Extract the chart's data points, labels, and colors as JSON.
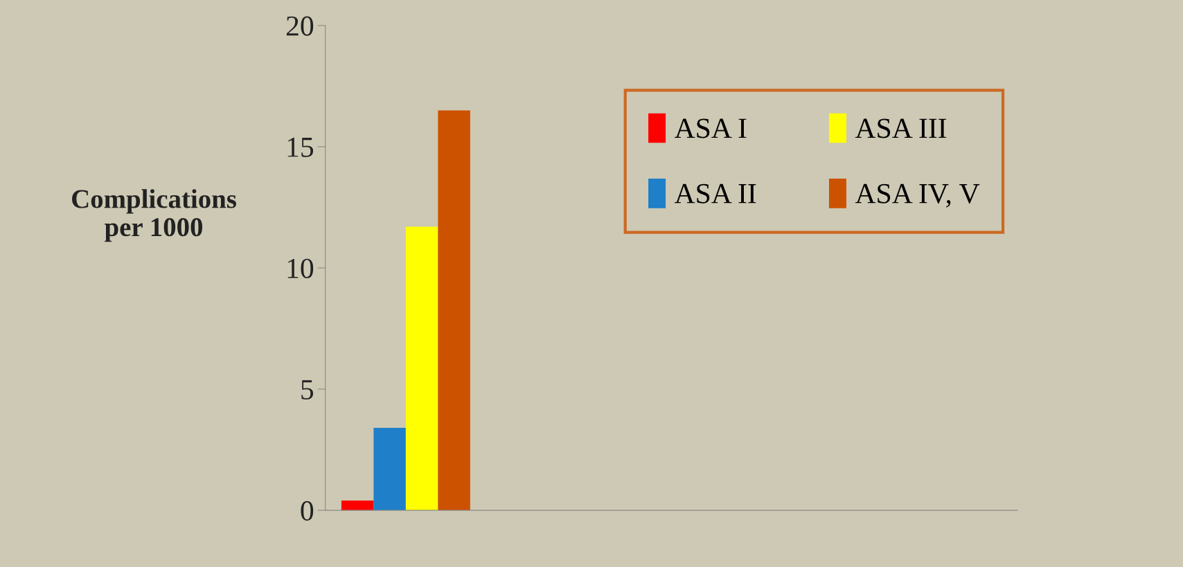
{
  "chart_data": {
    "type": "bar",
    "ylabel": "Complications\nper 1000",
    "categories": [
      null
    ],
    "series": [
      {
        "name": "ASA I",
        "color": "#ff0000",
        "values": [
          0.4
        ]
      },
      {
        "name": "ASA II",
        "color": "#1f7fc8",
        "values": [
          3.4
        ]
      },
      {
        "name": "ASA III",
        "color": "#ffff00",
        "values": [
          11.7
        ]
      },
      {
        "name": "ASA IV, V",
        "color": "#cc5200",
        "values": [
          16.5
        ]
      }
    ],
    "ylim": [
      0,
      20
    ],
    "yticks": [
      0,
      5,
      10,
      15,
      20
    ],
    "grid": false,
    "legend": "right"
  }
}
